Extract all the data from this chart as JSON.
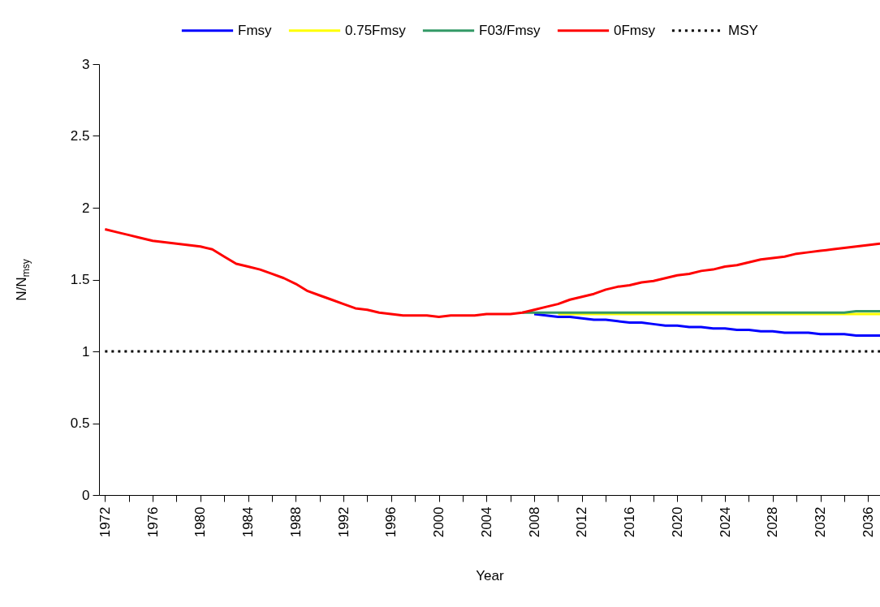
{
  "chart_data": {
    "type": "line",
    "xlabel": "Year",
    "ylabel": "N/N$_{msy}$",
    "x": [
      1972,
      1973,
      1974,
      1975,
      1976,
      1977,
      1978,
      1979,
      1980,
      1981,
      1982,
      1983,
      1984,
      1985,
      1986,
      1987,
      1988,
      1989,
      1990,
      1991,
      1992,
      1993,
      1994,
      1995,
      1996,
      1997,
      1998,
      1999,
      2000,
      2001,
      2002,
      2003,
      2004,
      2005,
      2006,
      2007,
      2008,
      2009,
      2010,
      2011,
      2012,
      2013,
      2014,
      2015,
      2016,
      2017,
      2018,
      2019,
      2020,
      2021,
      2022,
      2023,
      2024,
      2025,
      2026,
      2027,
      2028,
      2029,
      2030,
      2031,
      2032,
      2033,
      2034,
      2035,
      2036,
      2037
    ],
    "xlim": [
      1971.5,
      2037
    ],
    "xticks": [
      1972,
      {
        "value": 1974,
        "label": null
      },
      1976,
      {
        "value": 1978,
        "label": null
      },
      1980,
      {
        "value": 1982,
        "label": null
      },
      1984,
      {
        "value": 1986,
        "label": null
      },
      1988,
      {
        "value": 1990,
        "label": null
      },
      1992,
      {
        "value": 1994,
        "label": null
      },
      1996,
      {
        "value": 1998,
        "label": null
      },
      2000,
      {
        "value": 2002,
        "label": null
      },
      2004,
      {
        "value": 2006,
        "label": null
      },
      2008,
      {
        "value": 2010,
        "label": null
      },
      2012,
      {
        "value": 2014,
        "label": null
      },
      2016,
      {
        "value": 2018,
        "label": null
      },
      2020,
      {
        "value": 2022,
        "label": null
      },
      2024,
      {
        "value": 2026,
        "label": null
      },
      2028,
      {
        "value": 2030,
        "label": null
      },
      2032,
      {
        "value": 2034,
        "label": null
      },
      2036
    ],
    "ylim": [
      0,
      3
    ],
    "yticks": [
      0,
      0.5,
      1,
      1.5,
      2,
      2.5,
      3
    ],
    "legend": "top",
    "grid": false,
    "series": [
      {
        "name": "Fmsy",
        "color": "#0000ff",
        "line_style": "solid",
        "values": [
          null,
          null,
          null,
          null,
          null,
          null,
          null,
          null,
          null,
          null,
          null,
          null,
          null,
          null,
          null,
          null,
          null,
          null,
          null,
          null,
          null,
          null,
          null,
          null,
          null,
          null,
          null,
          null,
          null,
          null,
          null,
          null,
          null,
          null,
          null,
          null,
          1.26,
          1.25,
          1.24,
          1.24,
          1.23,
          1.22,
          1.22,
          1.21,
          1.2,
          1.2,
          1.19,
          1.18,
          1.18,
          1.17,
          1.17,
          1.16,
          1.16,
          1.15,
          1.15,
          1.14,
          1.14,
          1.13,
          1.13,
          1.13,
          1.12,
          1.12,
          1.12,
          1.11,
          1.11,
          1.11
        ]
      },
      {
        "name": "0.75Fmsy",
        "color": "#ffff00",
        "line_style": "solid",
        "values": [
          null,
          null,
          null,
          null,
          null,
          null,
          null,
          null,
          null,
          null,
          null,
          null,
          null,
          null,
          null,
          null,
          null,
          null,
          null,
          null,
          null,
          null,
          null,
          null,
          null,
          null,
          null,
          null,
          null,
          null,
          null,
          null,
          null,
          null,
          null,
          null,
          null,
          null,
          1.26,
          1.26,
          1.26,
          1.26,
          1.26,
          1.26,
          1.26,
          1.26,
          1.26,
          1.26,
          1.26,
          1.26,
          1.26,
          1.26,
          1.26,
          1.26,
          1.26,
          1.26,
          1.26,
          1.26,
          1.26,
          1.26,
          1.26,
          1.26,
          1.26,
          1.26,
          1.26,
          1.26
        ]
      },
      {
        "name": "F03/Fmsy",
        "color": "#339966",
        "line_style": "solid",
        "values": [
          null,
          null,
          null,
          null,
          null,
          null,
          null,
          null,
          null,
          null,
          null,
          null,
          null,
          null,
          null,
          null,
          null,
          null,
          null,
          null,
          null,
          null,
          null,
          null,
          null,
          null,
          null,
          null,
          null,
          null,
          null,
          null,
          null,
          null,
          null,
          1.27,
          1.27,
          1.27,
          1.27,
          1.27,
          1.27,
          1.27,
          1.27,
          1.27,
          1.27,
          1.27,
          1.27,
          1.27,
          1.27,
          1.27,
          1.27,
          1.27,
          1.27,
          1.27,
          1.27,
          1.27,
          1.27,
          1.27,
          1.27,
          1.27,
          1.27,
          1.27,
          1.27,
          1.28,
          1.28,
          1.28
        ]
      },
      {
        "name": "0Fmsy",
        "color": "#ff0000",
        "line_style": "solid",
        "values": [
          1.85,
          1.83,
          1.81,
          1.79,
          1.77,
          1.76,
          1.75,
          1.74,
          1.73,
          1.71,
          1.66,
          1.61,
          1.59,
          1.57,
          1.54,
          1.51,
          1.47,
          1.42,
          1.39,
          1.36,
          1.33,
          1.3,
          1.29,
          1.27,
          1.26,
          1.25,
          1.25,
          1.25,
          1.24,
          1.25,
          1.25,
          1.25,
          1.26,
          1.26,
          1.26,
          1.27,
          1.29,
          1.31,
          1.33,
          1.36,
          1.38,
          1.4,
          1.43,
          1.45,
          1.46,
          1.48,
          1.49,
          1.51,
          1.53,
          1.54,
          1.56,
          1.57,
          1.59,
          1.6,
          1.62,
          1.64,
          1.65,
          1.66,
          1.68,
          1.69,
          1.7,
          1.71,
          1.72,
          1.73,
          1.74,
          1.75
        ]
      },
      {
        "name": "MSY",
        "color": "#000000",
        "line_style": "dotted",
        "values": [
          1,
          1,
          1,
          1,
          1,
          1,
          1,
          1,
          1,
          1,
          1,
          1,
          1,
          1,
          1,
          1,
          1,
          1,
          1,
          1,
          1,
          1,
          1,
          1,
          1,
          1,
          1,
          1,
          1,
          1,
          1,
          1,
          1,
          1,
          1,
          1,
          1,
          1,
          1,
          1,
          1,
          1,
          1,
          1,
          1,
          1,
          1,
          1,
          1,
          1,
          1,
          1,
          1,
          1,
          1,
          1,
          1,
          1,
          1,
          1,
          1,
          1,
          1,
          1,
          1,
          1
        ]
      }
    ]
  }
}
